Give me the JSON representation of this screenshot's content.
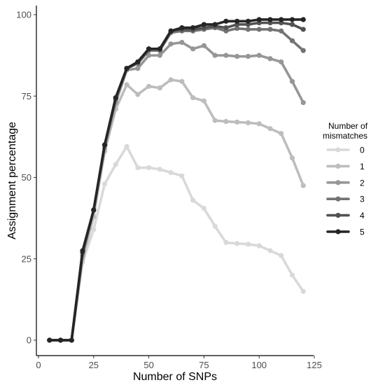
{
  "chart_data": {
    "type": "line",
    "xlabel": "Number of SNPs",
    "ylabel": "Assignment percentage",
    "xlim": [
      0,
      125
    ],
    "ylim": [
      0,
      100
    ],
    "xticks": [
      0,
      25,
      50,
      75,
      100,
      125
    ],
    "yticks": [
      0,
      25,
      50,
      75,
      100
    ],
    "grid": false,
    "legend": {
      "title_lines": [
        "Number of",
        "mismatches"
      ],
      "position": "right"
    },
    "x": [
      5,
      10,
      15,
      20,
      25,
      30,
      35,
      40,
      45,
      50,
      55,
      60,
      65,
      70,
      75,
      80,
      85,
      90,
      95,
      100,
      105,
      110,
      115,
      120
    ],
    "series": [
      {
        "name": "0",
        "color": "#d9d9d9",
        "values": [
          0,
          0,
          0,
          24,
          34,
          48,
          54,
          59.5,
          53,
          53,
          52.5,
          51.5,
          50.5,
          43,
          40.5,
          35,
          30,
          29.7,
          29.5,
          29,
          27.5,
          26,
          20,
          15
        ]
      },
      {
        "name": "1",
        "color": "#bdbdbd",
        "values": [
          0,
          0,
          0,
          25,
          38,
          58,
          71,
          78.5,
          75.5,
          78,
          77.5,
          80,
          79.5,
          74.5,
          73.5,
          67.5,
          67.2,
          67,
          66.8,
          66.5,
          65,
          63.5,
          56,
          47.5
        ]
      },
      {
        "name": "2",
        "color": "#969696",
        "values": [
          0,
          0,
          0,
          26,
          40,
          59,
          73,
          83,
          83.5,
          87.5,
          87.5,
          91,
          91.5,
          89.5,
          90.5,
          87.5,
          87.5,
          87.2,
          87.2,
          87.5,
          86.5,
          85.5,
          79.5,
          73
        ]
      },
      {
        "name": "3",
        "color": "#737373",
        "values": [
          0,
          0,
          0,
          27,
          40,
          60,
          74,
          83.5,
          85,
          89,
          89,
          94.5,
          95,
          95,
          95.5,
          96,
          95,
          95.8,
          95.5,
          95.5,
          95.5,
          95,
          92,
          89
        ]
      },
      {
        "name": "4",
        "color": "#525252",
        "values": [
          0,
          0,
          0,
          27,
          40,
          60,
          74.5,
          83.5,
          85.5,
          89.5,
          89.5,
          95,
          95.5,
          95.5,
          96,
          96.5,
          96,
          97,
          97,
          97.5,
          97.5,
          97.5,
          97,
          95.5
        ]
      },
      {
        "name": "5",
        "color": "#252525",
        "values": [
          0,
          0,
          0,
          27.5,
          40,
          60,
          74.5,
          83.5,
          85.5,
          89.5,
          89.5,
          95,
          96,
          96,
          97,
          97,
          98,
          98,
          98,
          98.5,
          98.5,
          98.5,
          98.5,
          98.5
        ]
      }
    ]
  }
}
